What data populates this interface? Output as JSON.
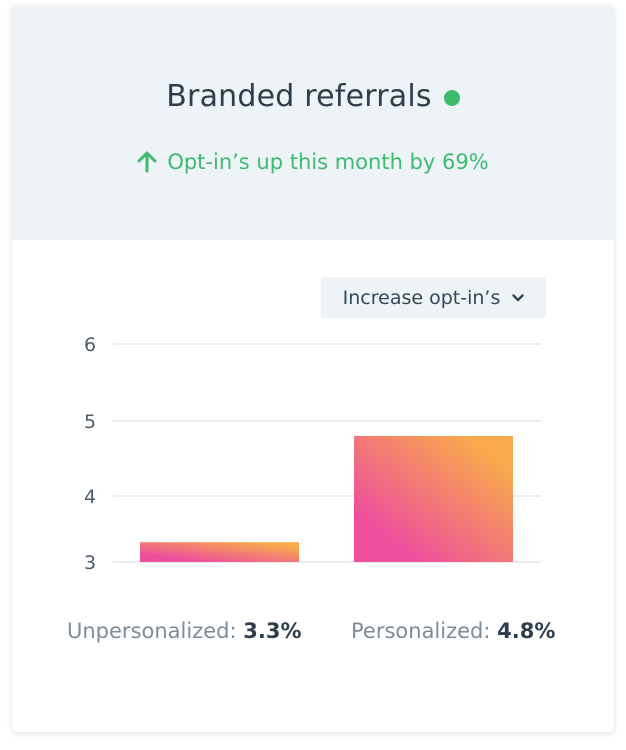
{
  "card": {
    "title": "Branded referrals",
    "status_color": "#3dbb6e",
    "trend_text": "Opt-in’s up this month by 69%",
    "trend_color": "#3dbb6e",
    "trend_icon": "arrow-up-icon"
  },
  "dropdown": {
    "selected": "Increase opt-in’s",
    "icon": "chevron-down-icon"
  },
  "chart_data": {
    "type": "bar",
    "categories": [
      "Unpersonalized",
      "Personalized"
    ],
    "values": [
      3.3,
      4.8
    ],
    "yticks": [
      3,
      4,
      5,
      6
    ],
    "ylim": [
      3,
      6
    ],
    "grid": true,
    "title": "",
    "xlabel": "",
    "ylabel": "",
    "bar_gradient": [
      "#ee4f9c",
      "#f7a94c"
    ]
  },
  "legend": [
    {
      "label": "Unpersonalized:",
      "value": "3.3%"
    },
    {
      "label": "Personalized:",
      "value": "4.8%"
    }
  ]
}
